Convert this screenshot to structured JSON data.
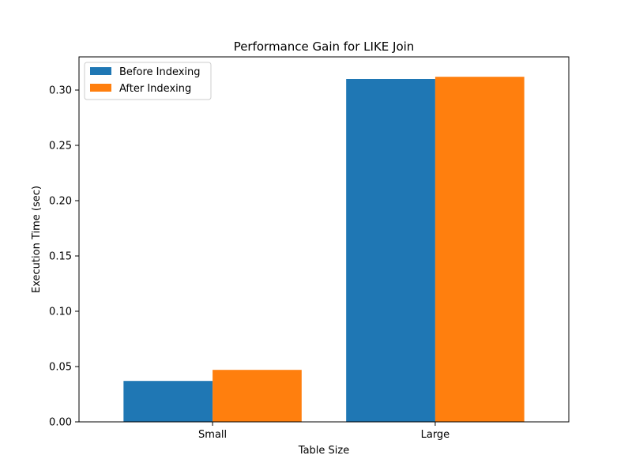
{
  "chart_data": {
    "type": "bar",
    "title": "Performance Gain for LIKE Join",
    "xlabel": "Table Size",
    "ylabel": "Execution Time (sec)",
    "categories": [
      "Small",
      "Large"
    ],
    "series": [
      {
        "name": "Before Indexing",
        "values": [
          0.037,
          0.31
        ],
        "color": "#1f77b4"
      },
      {
        "name": "After Indexing",
        "values": [
          0.047,
          0.312
        ],
        "color": "#ff7f0e"
      }
    ],
    "ylim": [
      0,
      0.33
    ],
    "yticks": [
      0.0,
      0.05,
      0.1,
      0.15,
      0.2,
      0.25,
      0.3
    ],
    "ytick_labels": [
      "0.00",
      "0.05",
      "0.10",
      "0.15",
      "0.20",
      "0.25",
      "0.30"
    ],
    "grid": false,
    "legend_position": "top-left"
  }
}
